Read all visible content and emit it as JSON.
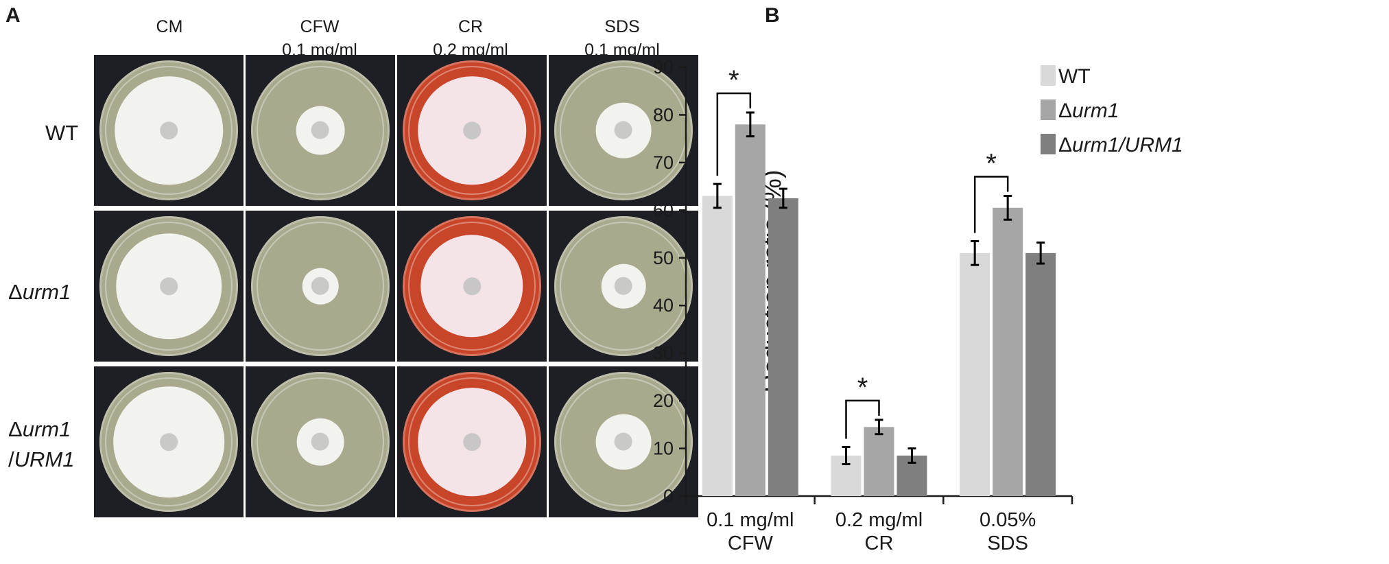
{
  "panel_a": {
    "letter": "A",
    "columns": [
      {
        "line1": "CM",
        "line2": ""
      },
      {
        "line1": "CFW",
        "line2": "0.1 mg/ml"
      },
      {
        "line1": "CR",
        "line2": "0.2 mg/ml"
      },
      {
        "line1": "SDS",
        "line2": "0.1 mg/ml"
      }
    ],
    "rows": [
      {
        "prefix": "WT",
        "italic": "",
        "suffix": ""
      },
      {
        "prefix": "Δ",
        "italic": "urm1",
        "suffix": ""
      },
      {
        "prefix": "Δ",
        "italic": "urm1",
        "suffix": "",
        "line2_prefix": "/",
        "line2_italic": "URM1"
      }
    ],
    "plate_colors": {
      "agar": "#a9a98e",
      "cr_agar": "#c9452a",
      "colony": "#f2f2ee",
      "cr_colony": "#f4e4e8"
    },
    "colony_diameters_rel": [
      [
        0.78,
        0.35,
        0.78,
        0.4
      ],
      [
        0.76,
        0.26,
        0.74,
        0.32
      ],
      [
        0.8,
        0.34,
        0.78,
        0.4
      ]
    ]
  },
  "chart_data": {
    "type": "bar",
    "panel_letter": "B",
    "categories": [
      {
        "line1": "0.1 mg/ml",
        "line2": "CFW"
      },
      {
        "line1": "0.2 mg/ml",
        "line2": "CR"
      },
      {
        "line1": "0.05%",
        "line2": "SDS"
      }
    ],
    "series": [
      {
        "name": "WT",
        "name_prefix": "",
        "name_italic": "",
        "name_plain": "WT",
        "color": "#d9d9d9",
        "values": [
          63,
          8.5,
          51
        ],
        "errors": [
          2.5,
          1.8,
          2.5
        ]
      },
      {
        "name": "Δurm1",
        "name_prefix": "Δ",
        "name_italic": "urm1",
        "name_plain": "",
        "color": "#a6a6a6",
        "values": [
          78,
          14.5,
          60.5
        ],
        "errors": [
          2.5,
          1.5,
          2.5
        ]
      },
      {
        "name": "Δurm1/URM1",
        "name_prefix": "Δ",
        "name_italic": "urm1/URM1",
        "name_plain": "",
        "color": "#7f7f7f",
        "values": [
          62.5,
          8.5,
          51
        ],
        "errors": [
          2.0,
          1.5,
          2.2
        ]
      }
    ],
    "significance": [
      {
        "category_index": 0,
        "from_series": 0,
        "to_series": 1,
        "label": "*"
      },
      {
        "category_index": 1,
        "from_series": 0,
        "to_series": 1,
        "label": "*"
      },
      {
        "category_index": 2,
        "from_series": 0,
        "to_series": 1,
        "label": "*"
      }
    ],
    "ylabel": "Reduction ratio (%)",
    "xlabel": "",
    "title": "",
    "ylim": [
      0,
      90
    ],
    "yticks": [
      0,
      10,
      20,
      30,
      40,
      50,
      60,
      70,
      80,
      90
    ],
    "legend_position": "top-center",
    "grid": false
  }
}
